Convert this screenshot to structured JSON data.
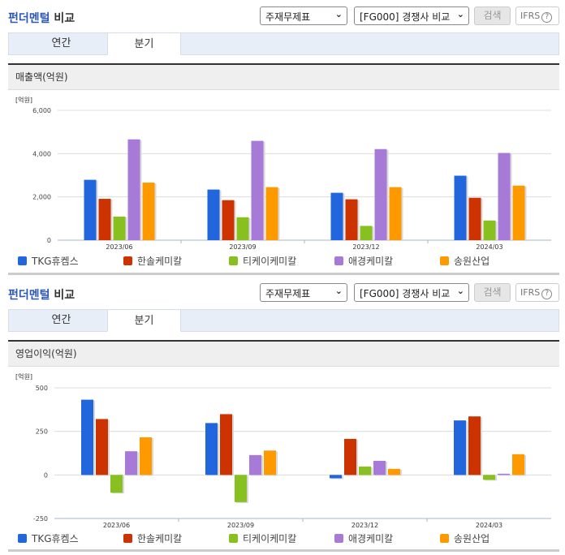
{
  "sections": [
    {
      "title_part1": "펀더멘털",
      "title_part2": " 비교",
      "select_statement": "주재무제표",
      "select_compare": "[FG000] 경쟁사 비교",
      "search_label": "검색",
      "ifrs_label": "IFRS",
      "help_icon": "?",
      "tabs": [
        "연간",
        "분기"
      ],
      "active_tab": "분기",
      "metric_title": "매출액(억원)",
      "unit": "[억원]"
    },
    {
      "title_part1": "펀더멘털",
      "title_part2": " 비교",
      "select_statement": "주재무제표",
      "select_compare": "[FG000] 경쟁사 비교",
      "search_label": "검색",
      "ifrs_label": "IFRS",
      "help_icon": "?",
      "tabs": [
        "연간",
        "분기"
      ],
      "active_tab": "분기",
      "metric_title": "영업이익(억원)",
      "unit": "[억원]"
    }
  ],
  "colors": {
    "TKG휴켐스": "#2266dd",
    "한솔케미칼": "#cc3300",
    "티케이케미칼": "#88c020",
    "애경케미칼": "#a87ad8",
    "송원산업": "#ff9900"
  },
  "chart_data": [
    {
      "type": "bar",
      "title": "매출액(억원)",
      "ylabel": "[억원]",
      "xlabel": "",
      "categories": [
        "2023/06",
        "2023/09",
        "2023/12",
        "2024/03"
      ],
      "yticks": [
        "0",
        "2,000",
        "4,000",
        "6,000"
      ],
      "ylim": [
        0,
        6000
      ],
      "grid": true,
      "legend_position": "bottom",
      "series": [
        {
          "name": "TKG휴켐스",
          "values": [
            2790,
            2340,
            2190,
            2980
          ]
        },
        {
          "name": "한솔케미칼",
          "values": [
            1910,
            1850,
            1890,
            1960
          ]
        },
        {
          "name": "티케이케미칼",
          "values": [
            1090,
            1060,
            660,
            910
          ]
        },
        {
          "name": "애경케미칼",
          "values": [
            4660,
            4590,
            4210,
            4030
          ]
        },
        {
          "name": "송원산업",
          "values": [
            2660,
            2450,
            2450,
            2520
          ]
        }
      ]
    },
    {
      "type": "bar",
      "title": "영업이익(억원)",
      "ylabel": "[억원]",
      "xlabel": "",
      "categories": [
        "2023/06",
        "2023/09",
        "2023/12",
        "2024/03"
      ],
      "yticks": [
        "-250",
        "0",
        "250",
        "500"
      ],
      "ylim": [
        -250,
        500
      ],
      "grid": true,
      "legend_position": "bottom",
      "series": [
        {
          "name": "TKG휴켐스",
          "values": [
            432,
            298,
            -19,
            313
          ]
        },
        {
          "name": "한솔케미칼",
          "values": [
            321,
            349,
            207,
            336
          ]
        },
        {
          "name": "티케이케미칼",
          "values": [
            -102,
            -156,
            48,
            -28
          ]
        },
        {
          "name": "애경케미칼",
          "values": [
            136,
            114,
            81,
            7
          ]
        },
        {
          "name": "송원산업",
          "values": [
            216,
            140,
            35,
            119
          ]
        }
      ]
    }
  ]
}
